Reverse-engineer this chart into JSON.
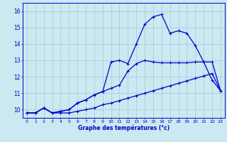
{
  "xlabel": "Graphe des températures (°c)",
  "background_color": "#cce8f0",
  "grid_color": "#99cce0",
  "line_color": "#0000cc",
  "xlim": [
    -0.5,
    23.5
  ],
  "ylim": [
    9.5,
    16.5
  ],
  "yticks": [
    10,
    11,
    12,
    13,
    14,
    15,
    16
  ],
  "xticks": [
    0,
    1,
    2,
    3,
    4,
    5,
    6,
    7,
    8,
    9,
    10,
    11,
    12,
    13,
    14,
    15,
    16,
    17,
    18,
    19,
    20,
    21,
    22,
    23
  ],
  "line1_x": [
    0,
    1,
    2,
    3,
    4,
    5,
    6,
    7,
    8,
    9,
    10,
    11,
    12,
    13,
    14,
    15,
    16,
    17,
    18,
    19,
    20,
    21,
    22,
    23
  ],
  "line1_y": [
    9.8,
    9.8,
    10.1,
    9.8,
    9.8,
    9.8,
    9.9,
    10.0,
    10.1,
    10.3,
    10.4,
    10.55,
    10.7,
    10.85,
    11.0,
    11.15,
    11.3,
    11.45,
    11.6,
    11.75,
    11.9,
    12.05,
    12.2,
    11.15
  ],
  "line2_x": [
    0,
    1,
    2,
    3,
    4,
    5,
    6,
    7,
    8,
    9,
    10,
    11,
    12,
    13,
    14,
    15,
    16,
    17,
    18,
    19,
    20,
    21,
    22,
    23
  ],
  "line2_y": [
    9.8,
    9.8,
    10.1,
    9.8,
    9.9,
    10.0,
    10.4,
    10.6,
    10.9,
    11.1,
    11.3,
    11.5,
    12.35,
    12.8,
    13.0,
    12.9,
    12.85,
    12.85,
    12.85,
    12.85,
    12.9,
    12.9,
    11.8,
    11.15
  ],
  "line3_x": [
    0,
    1,
    2,
    3,
    4,
    5,
    6,
    7,
    8,
    9,
    10,
    11,
    12,
    13,
    14,
    15,
    16,
    17,
    18,
    19,
    20,
    21,
    22,
    23
  ],
  "line3_y": [
    9.8,
    9.8,
    10.1,
    9.8,
    9.9,
    10.0,
    10.4,
    10.6,
    10.9,
    11.1,
    12.9,
    13.0,
    12.8,
    14.0,
    15.2,
    15.65,
    15.8,
    14.65,
    14.8,
    14.65,
    13.9,
    12.9,
    12.9,
    11.15
  ]
}
